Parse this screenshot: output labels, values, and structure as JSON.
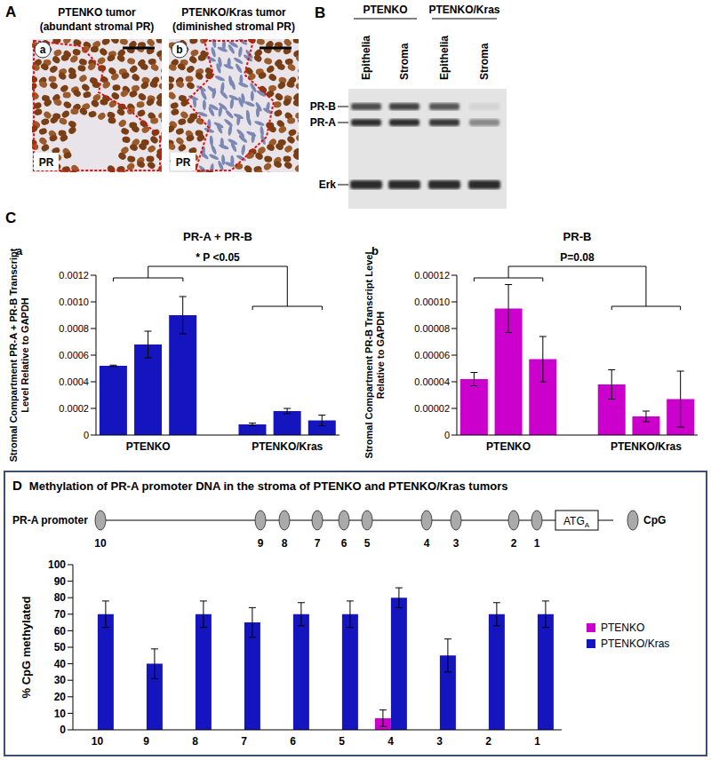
{
  "panel_A": {
    "label": "A",
    "images": [
      {
        "title": "PTENKO tumor",
        "subtitle": "(abundant stromal PR)",
        "label": "a",
        "stain": "PR"
      },
      {
        "title": "PTENKO/Kras tumor",
        "subtitle": "(diminished stromal PR)",
        "label": "b",
        "stain": "PR"
      }
    ]
  },
  "panel_B": {
    "label": "B",
    "groups": [
      "PTENKO",
      "PTENKO/Kras"
    ],
    "lanes": [
      "Epithelia",
      "Stroma",
      "Epithelia",
      "Stroma"
    ],
    "bands": [
      "PR-B",
      "PR-A"
    ],
    "loading_control": "Erk"
  },
  "panel_C": {
    "label": "C"
  },
  "panel_D": {
    "label": "D",
    "promoter": {
      "label": "PR-A promoter",
      "sites": [
        "10",
        "9",
        "8",
        "7",
        "6",
        "5",
        "4",
        "3",
        "2",
        "1"
      ],
      "start_codon": "ATG",
      "start_codon_subscript": "A",
      "key": "CpG"
    }
  },
  "chart_data": [
    {
      "type": "bar",
      "panel_label": "a",
      "title": "PR-A + PR-B",
      "y_label": "Stromal Compartment PR-A + PR-B Transcript Level Relative to GAPDH",
      "categories": [
        null,
        "PTENKO",
        null,
        null,
        null,
        "PTENKO/Kras",
        null
      ],
      "values": [
        0.00052,
        0.00068,
        0.0009,
        null,
        8e-05,
        0.00018,
        0.00011
      ],
      "errors": [
        5e-06,
        0.0001,
        0.00014,
        null,
        1e-05,
        2e-05,
        4e-05
      ],
      "color": "#1515c0",
      "ylim": [
        0,
        0.0012
      ],
      "yticks": [
        0,
        0.0002,
        0.0004,
        0.0006,
        0.0008,
        {
          "value": 0.001,
          "label": "0.0010"
        },
        0.0012
      ],
      "annotations": [
        "* P <0.05"
      ]
    },
    {
      "type": "bar",
      "panel_label": "b",
      "title": "PR-B",
      "y_label": "Stromal Compartment PR-B Transcript Level Relative to GAPDH",
      "categories": [
        null,
        "PTENKO",
        null,
        null,
        null,
        "PTENKO/Kras",
        null
      ],
      "values": [
        4.2e-05,
        9.5e-05,
        5.7e-05,
        null,
        3.8e-05,
        1.4e-05,
        2.7e-05
      ],
      "errors": [
        5e-06,
        1.8e-05,
        1.7e-05,
        null,
        1.1e-05,
        4e-06,
        2.1e-05
      ],
      "color": "#cc00cc",
      "ylim": [
        0,
        0.00012
      ],
      "yticks": [
        0,
        2e-05,
        4e-05,
        6e-05,
        8e-05,
        {
          "value": 0.0001,
          "label": "0.00010"
        },
        0.00012
      ],
      "annotations": [
        "P=0.08"
      ]
    },
    {
      "type": "bar",
      "title": "Methylation of PR-A promoter DNA in the stroma of PTENKO and PTENKO/Kras tumors",
      "y_label": "% CpG methylated",
      "categories": [
        "10",
        "9",
        "8",
        "7",
        "6",
        "5",
        "4",
        "3",
        "2",
        "1"
      ],
      "series": [
        {
          "name": "PTENKO",
          "color": "#cc00cc",
          "values": [
            0,
            0,
            0,
            0,
            0,
            0,
            7,
            0,
            0,
            0
          ],
          "errors": [
            null,
            null,
            null,
            null,
            null,
            null,
            5,
            null,
            null,
            null
          ]
        },
        {
          "name": "PTENKO/Kras",
          "color": "#1515c0",
          "values": [
            70,
            40,
            70,
            65,
            70,
            70,
            80,
            45,
            70,
            70
          ],
          "errors": [
            8,
            9,
            8,
            9,
            7,
            8,
            6,
            10,
            7,
            8
          ]
        }
      ],
      "ylim": [
        0,
        100
      ],
      "yticks": [
        0,
        10,
        20,
        30,
        40,
        50,
        60,
        70,
        80,
        90,
        100
      ],
      "legend": "right"
    }
  ]
}
